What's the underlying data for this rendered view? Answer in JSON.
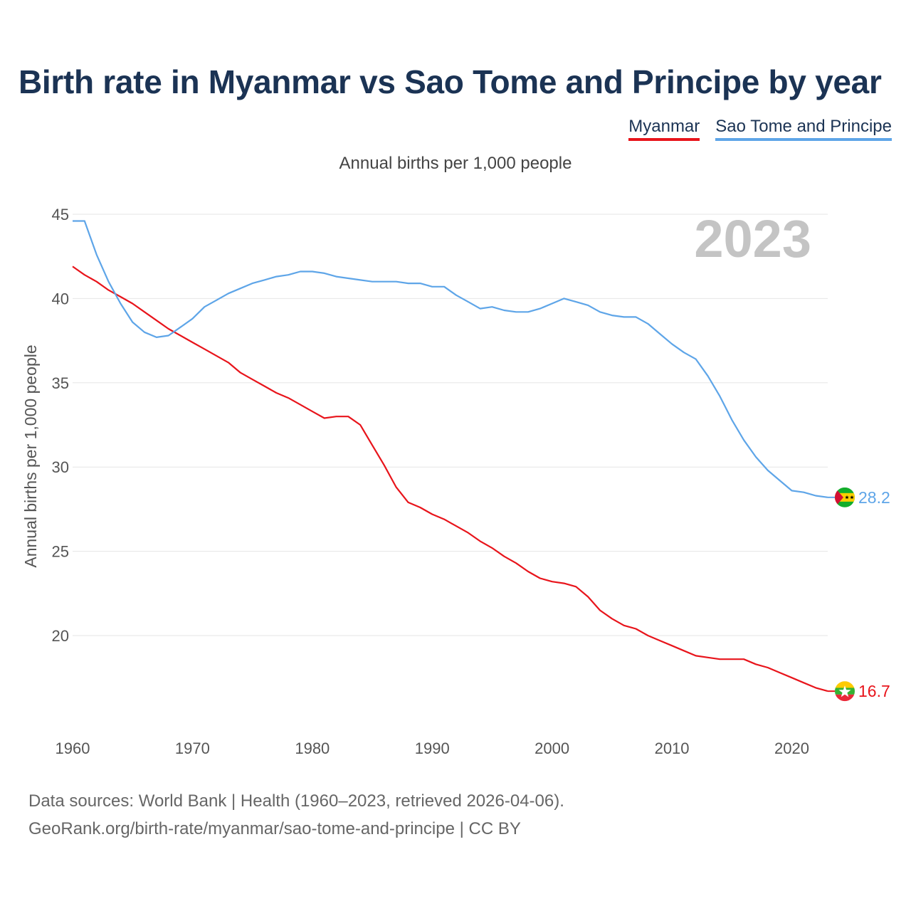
{
  "title": "Birth rate in Myanmar vs Sao Tome and Principe by year",
  "subtitle": "Annual births per 1,000 people",
  "footer": {
    "line1": "Data sources: World Bank | Health (1960–2023, retrieved 2026-04-06).",
    "line2": "GeoRank.org/birth-rate/myanmar/sao-tome-and-principe | CC BY"
  },
  "colors": {
    "myanmar": "#e8141b",
    "sao_tome": "#5ea5e8",
    "title": "#1b3354",
    "year_watermark": "#c4c4c4"
  },
  "chart_data": {
    "type": "line",
    "title": "Birth rate in Myanmar vs Sao Tome and Principe by year",
    "xlabel": "",
    "ylabel": "Annual births per 1,000 people",
    "ylim": [
      16,
      45.5
    ],
    "xlim": [
      1960,
      2023
    ],
    "yticks": [
      20,
      25,
      30,
      35,
      40,
      45
    ],
    "xticks": [
      1960,
      1970,
      1980,
      1990,
      2000,
      2010,
      2020
    ],
    "grid": true,
    "legend_position": "top-right",
    "year_label": "2023",
    "x": [
      1960,
      1961,
      1962,
      1963,
      1964,
      1965,
      1966,
      1967,
      1968,
      1969,
      1970,
      1971,
      1972,
      1973,
      1974,
      1975,
      1976,
      1977,
      1978,
      1979,
      1980,
      1981,
      1982,
      1983,
      1984,
      1985,
      1986,
      1987,
      1988,
      1989,
      1990,
      1991,
      1992,
      1993,
      1994,
      1995,
      1996,
      1997,
      1998,
      1999,
      2000,
      2001,
      2002,
      2003,
      2004,
      2005,
      2006,
      2007,
      2008,
      2009,
      2010,
      2011,
      2012,
      2013,
      2014,
      2015,
      2016,
      2017,
      2018,
      2019,
      2020,
      2021,
      2022,
      2023
    ],
    "series": [
      {
        "name": "Myanmar",
        "color": "#e8141b",
        "end_label": "16.7",
        "flag": "myanmar-flag",
        "values": [
          41.9,
          41.4,
          41.0,
          40.5,
          40.1,
          39.7,
          39.2,
          38.7,
          38.2,
          37.8,
          37.4,
          37.0,
          36.6,
          36.2,
          35.6,
          35.2,
          34.8,
          34.4,
          34.1,
          33.7,
          33.3,
          32.9,
          33.0,
          33.0,
          32.5,
          31.3,
          30.1,
          28.8,
          27.9,
          27.6,
          27.2,
          26.9,
          26.5,
          26.1,
          25.6,
          25.2,
          24.7,
          24.3,
          23.8,
          23.4,
          23.2,
          23.1,
          22.9,
          22.3,
          21.5,
          21.0,
          20.6,
          20.4,
          20.0,
          19.7,
          19.4,
          19.1,
          18.8,
          18.7,
          18.6,
          18.6,
          18.6,
          18.3,
          18.1,
          17.8,
          17.5,
          17.2,
          16.9,
          16.7
        ]
      },
      {
        "name": "Sao Tome and Principe",
        "color": "#5ea5e8",
        "end_label": "28.2",
        "flag": "sao-tome-flag",
        "values": [
          44.6,
          44.6,
          42.6,
          41.0,
          39.7,
          38.6,
          38.0,
          37.7,
          37.8,
          38.3,
          38.8,
          39.5,
          39.9,
          40.3,
          40.6,
          40.9,
          41.1,
          41.3,
          41.4,
          41.6,
          41.6,
          41.5,
          41.3,
          41.2,
          41.1,
          41.0,
          41.0,
          41.0,
          40.9,
          40.9,
          40.7,
          40.7,
          40.2,
          39.8,
          39.4,
          39.5,
          39.3,
          39.2,
          39.2,
          39.4,
          39.7,
          40.0,
          39.8,
          39.6,
          39.2,
          39.0,
          38.9,
          38.9,
          38.5,
          37.9,
          37.3,
          36.8,
          36.4,
          35.4,
          34.2,
          32.8,
          31.6,
          30.6,
          29.8,
          29.2,
          28.6,
          28.5,
          28.3,
          28.2
        ]
      }
    ]
  }
}
